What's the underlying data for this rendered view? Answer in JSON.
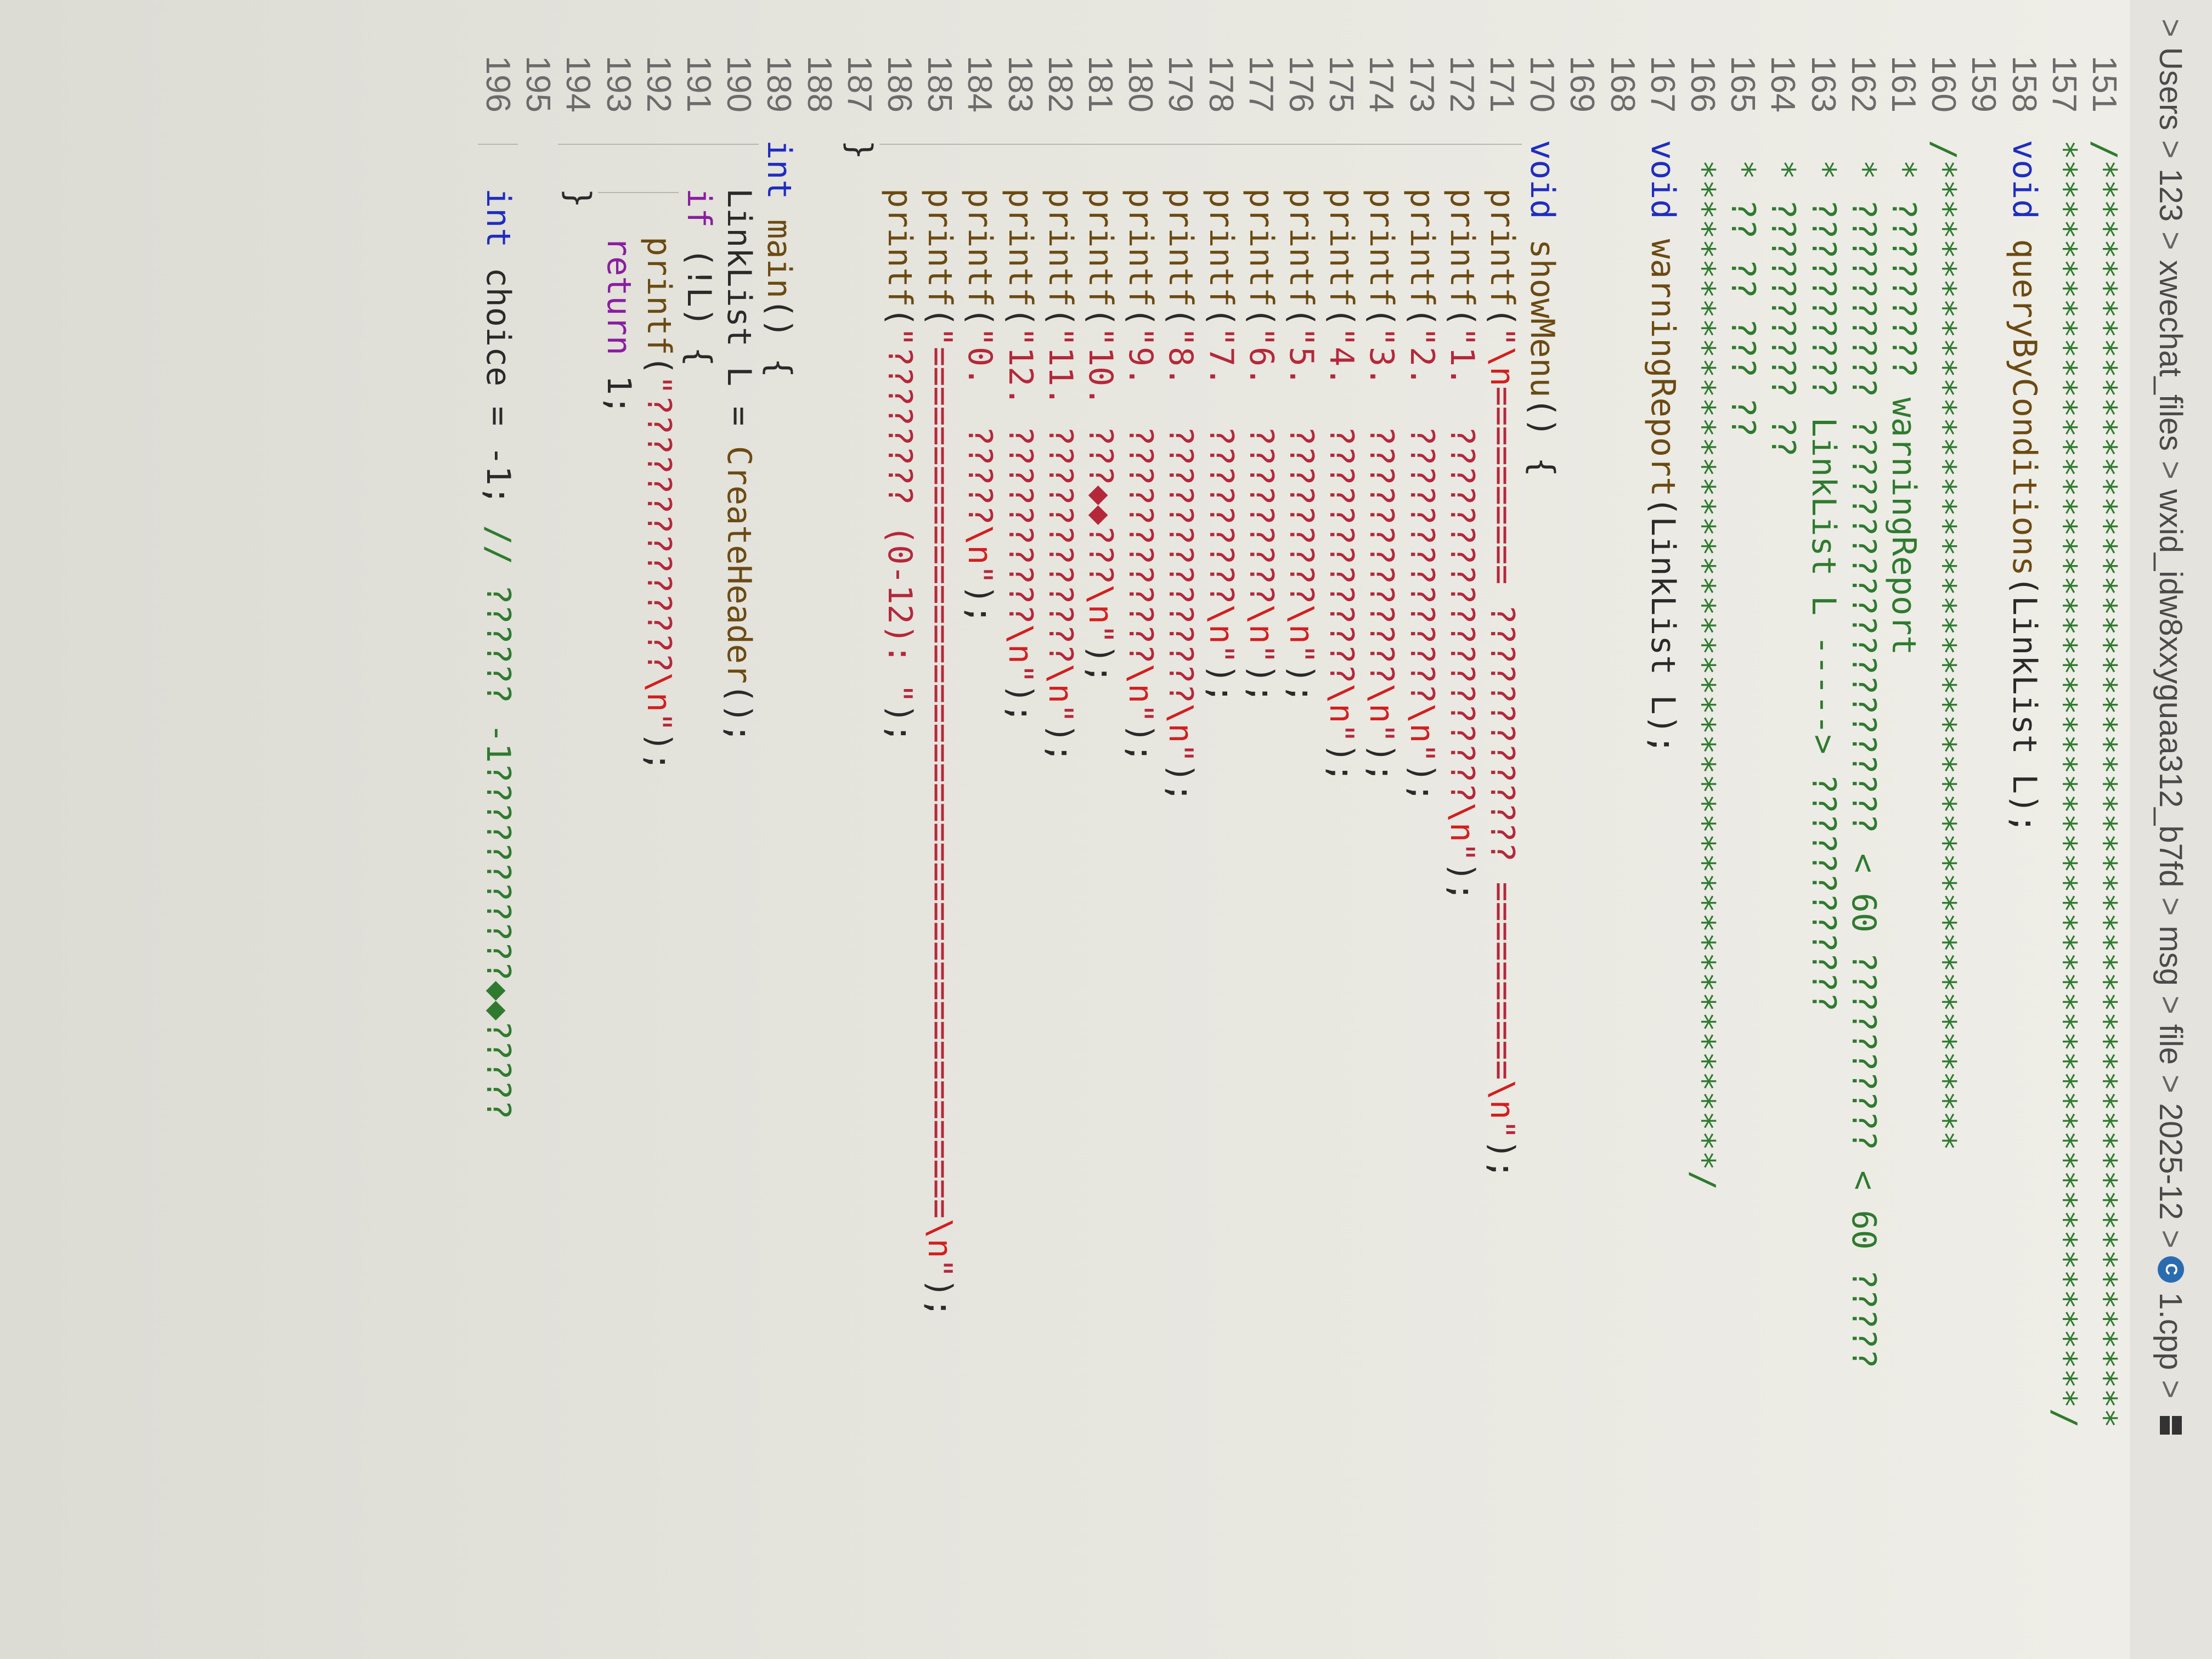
{
  "breadcrumb": {
    "items": [
      "Users",
      "123",
      "xwechat_files",
      "wxid_idw8xxyguaa312_b7fd",
      "msg",
      "file",
      "2025-12",
      "1.cpp"
    ],
    "separator": ">"
  },
  "editor": {
    "lines": [
      {
        "n": "151",
        "indent": 0,
        "tokens": [
          {
            "t": "cmt",
            "v": "/****************************************************************"
          }
        ]
      },
      {
        "n": "157",
        "indent": 0,
        "tokens": [
          {
            "t": "cmt",
            "v": "****************************************************************/"
          }
        ]
      },
      {
        "n": "158",
        "indent": 0,
        "tokens": [
          {
            "t": "kw",
            "v": "void "
          },
          {
            "t": "fn",
            "v": "queryByConditions"
          },
          {
            "t": "p",
            "v": "(LinkList L);"
          }
        ]
      },
      {
        "n": "159",
        "indent": 0,
        "tokens": []
      },
      {
        "n": "160",
        "indent": 0,
        "tokens": [
          {
            "t": "cmt",
            "v": "/**************************************************"
          }
        ]
      },
      {
        "n": "161",
        "indent": 0,
        "tokens": [
          {
            "t": "cmt",
            "v": " * ????????? warningReport"
          }
        ]
      },
      {
        "n": "162",
        "indent": 0,
        "tokens": [
          {
            "t": "cmt",
            "v": " * ?????????? ????????????????????? < 60 ?????????? < 60 ?????"
          }
        ]
      },
      {
        "n": "163",
        "indent": 0,
        "tokens": [
          {
            "t": "cmt",
            "v": " * ?????????? LinkList L -----> ????????????"
          }
        ]
      },
      {
        "n": "164",
        "indent": 0,
        "tokens": [
          {
            "t": "cmt",
            "v": " * ?????????? ??"
          }
        ]
      },
      {
        "n": "165",
        "indent": 0,
        "tokens": [
          {
            "t": "cmt",
            "v": " * ?? ?? ??? ??"
          }
        ]
      },
      {
        "n": "166",
        "indent": 0,
        "tokens": [
          {
            "t": "cmt",
            "v": " ***************************************************/"
          }
        ]
      },
      {
        "n": "167",
        "indent": 0,
        "tokens": [
          {
            "t": "kw",
            "v": "void "
          },
          {
            "t": "fn",
            "v": "warningReport"
          },
          {
            "t": "p",
            "v": "(LinkList L);"
          }
        ]
      },
      {
        "n": "168",
        "indent": 0,
        "tokens": []
      },
      {
        "n": "169",
        "indent": 0,
        "tokens": []
      },
      {
        "n": "170",
        "indent": 0,
        "tokens": [
          {
            "t": "kw",
            "v": "void "
          },
          {
            "t": "fn",
            "v": "showMenu"
          },
          {
            "t": "p",
            "v": "() {"
          }
        ]
      },
      {
        "n": "171",
        "indent": 1,
        "tokens": [
          {
            "t": "fn",
            "v": "printf"
          },
          {
            "t": "p",
            "v": "("
          },
          {
            "t": "str",
            "v": "\""
          },
          {
            "t": "esc",
            "v": "\\n"
          },
          {
            "t": "str",
            "v": "========== ????????????? =========="
          },
          {
            "t": "esc",
            "v": "\\n"
          },
          {
            "t": "str",
            "v": "\""
          },
          {
            "t": "p",
            "v": ");"
          }
        ]
      },
      {
        "n": "172",
        "indent": 1,
        "tokens": [
          {
            "t": "fn",
            "v": "printf"
          },
          {
            "t": "p",
            "v": "("
          },
          {
            "t": "str",
            "v": "\"1.  ???????????????????"
          },
          {
            "t": "esc",
            "v": "\\n"
          },
          {
            "t": "str",
            "v": "\""
          },
          {
            "t": "p",
            "v": ");"
          }
        ]
      },
      {
        "n": "173",
        "indent": 1,
        "tokens": [
          {
            "t": "fn",
            "v": "printf"
          },
          {
            "t": "p",
            "v": "("
          },
          {
            "t": "str",
            "v": "\"2.  ??????????????"
          },
          {
            "t": "esc",
            "v": "\\n"
          },
          {
            "t": "str",
            "v": "\""
          },
          {
            "t": "p",
            "v": ");"
          }
        ]
      },
      {
        "n": "174",
        "indent": 1,
        "tokens": [
          {
            "t": "fn",
            "v": "printf"
          },
          {
            "t": "p",
            "v": "("
          },
          {
            "t": "str",
            "v": "\"3.  ?????????????"
          },
          {
            "t": "esc",
            "v": "\\n"
          },
          {
            "t": "str",
            "v": "\""
          },
          {
            "t": "p",
            "v": ");"
          }
        ]
      },
      {
        "n": "175",
        "indent": 1,
        "tokens": [
          {
            "t": "fn",
            "v": "printf"
          },
          {
            "t": "p",
            "v": "("
          },
          {
            "t": "str",
            "v": "\"4.  ?????????????"
          },
          {
            "t": "esc",
            "v": "\\n"
          },
          {
            "t": "str",
            "v": "\""
          },
          {
            "t": "p",
            "v": ");"
          }
        ]
      },
      {
        "n": "176",
        "indent": 1,
        "tokens": [
          {
            "t": "fn",
            "v": "printf"
          },
          {
            "t": "p",
            "v": "("
          },
          {
            "t": "str",
            "v": "\"5.  ?????????"
          },
          {
            "t": "esc",
            "v": "\\n"
          },
          {
            "t": "str",
            "v": "\""
          },
          {
            "t": "p",
            "v": ");"
          }
        ]
      },
      {
        "n": "177",
        "indent": 1,
        "tokens": [
          {
            "t": "fn",
            "v": "printf"
          },
          {
            "t": "p",
            "v": "("
          },
          {
            "t": "str",
            "v": "\"6.  ?????????"
          },
          {
            "t": "esc",
            "v": "\\n"
          },
          {
            "t": "str",
            "v": "\""
          },
          {
            "t": "p",
            "v": ");"
          }
        ]
      },
      {
        "n": "178",
        "indent": 1,
        "tokens": [
          {
            "t": "fn",
            "v": "printf"
          },
          {
            "t": "p",
            "v": "("
          },
          {
            "t": "str",
            "v": "\"7.  ?????????"
          },
          {
            "t": "esc",
            "v": "\\n"
          },
          {
            "t": "str",
            "v": "\""
          },
          {
            "t": "p",
            "v": ");"
          }
        ]
      },
      {
        "n": "179",
        "indent": 1,
        "tokens": [
          {
            "t": "fn",
            "v": "printf"
          },
          {
            "t": "p",
            "v": "("
          },
          {
            "t": "str",
            "v": "\"8.  ??????????????"
          },
          {
            "t": "esc",
            "v": "\\n"
          },
          {
            "t": "str",
            "v": "\""
          },
          {
            "t": "p",
            "v": ");"
          }
        ]
      },
      {
        "n": "180",
        "indent": 1,
        "tokens": [
          {
            "t": "fn",
            "v": "printf"
          },
          {
            "t": "p",
            "v": "("
          },
          {
            "t": "str",
            "v": "\"9.  ????????????"
          },
          {
            "t": "esc",
            "v": "\\n"
          },
          {
            "t": "str",
            "v": "\""
          },
          {
            "t": "p",
            "v": ");"
          }
        ]
      },
      {
        "n": "181",
        "indent": 1,
        "tokens": [
          {
            "t": "fn",
            "v": "printf"
          },
          {
            "t": "p",
            "v": "("
          },
          {
            "t": "str",
            "v": "\"10. ???◆◆???"
          },
          {
            "t": "esc",
            "v": "\\n"
          },
          {
            "t": "str",
            "v": "\""
          },
          {
            "t": "p",
            "v": ");"
          }
        ]
      },
      {
        "n": "182",
        "indent": 1,
        "tokens": [
          {
            "t": "fn",
            "v": "printf"
          },
          {
            "t": "p",
            "v": "("
          },
          {
            "t": "str",
            "v": "\"11. ????????????"
          },
          {
            "t": "esc",
            "v": "\\n"
          },
          {
            "t": "str",
            "v": "\""
          },
          {
            "t": "p",
            "v": ");"
          }
        ]
      },
      {
        "n": "183",
        "indent": 1,
        "tokens": [
          {
            "t": "fn",
            "v": "printf"
          },
          {
            "t": "p",
            "v": "("
          },
          {
            "t": "str",
            "v": "\"12. ??????????"
          },
          {
            "t": "esc",
            "v": "\\n"
          },
          {
            "t": "str",
            "v": "\""
          },
          {
            "t": "p",
            "v": ");"
          }
        ]
      },
      {
        "n": "184",
        "indent": 1,
        "tokens": [
          {
            "t": "fn",
            "v": "printf"
          },
          {
            "t": "p",
            "v": "("
          },
          {
            "t": "str",
            "v": "\"0.  ?????"
          },
          {
            "t": "esc",
            "v": "\\n"
          },
          {
            "t": "str",
            "v": "\""
          },
          {
            "t": "p",
            "v": ");"
          }
        ]
      },
      {
        "n": "185",
        "indent": 1,
        "tokens": [
          {
            "t": "fn",
            "v": "printf"
          },
          {
            "t": "p",
            "v": "("
          },
          {
            "t": "str",
            "v": "\"============================================"
          },
          {
            "t": "esc",
            "v": "\\n"
          },
          {
            "t": "str",
            "v": "\""
          },
          {
            "t": "p",
            "v": ");"
          }
        ]
      },
      {
        "n": "186",
        "indent": 1,
        "tokens": [
          {
            "t": "fn",
            "v": "printf"
          },
          {
            "t": "p",
            "v": "("
          },
          {
            "t": "str",
            "v": "\"???????? (0-12): \""
          },
          {
            "t": "p",
            "v": ");"
          }
        ]
      },
      {
        "n": "187",
        "indent": 0,
        "tokens": [
          {
            "t": "p",
            "v": "}"
          }
        ]
      },
      {
        "n": "188",
        "indent": 0,
        "tokens": []
      },
      {
        "n": "189",
        "indent": 0,
        "tokens": [
          {
            "t": "kw",
            "v": "int "
          },
          {
            "t": "fn",
            "v": "main"
          },
          {
            "t": "p",
            "v": "() {"
          }
        ]
      },
      {
        "n": "190",
        "indent": 1,
        "tokens": [
          {
            "t": "p",
            "v": "LinkList L = "
          },
          {
            "t": "fn",
            "v": "CreateHeader"
          },
          {
            "t": "p",
            "v": "();"
          }
        ]
      },
      {
        "n": "191",
        "indent": 1,
        "tokens": [
          {
            "t": "flow",
            "v": "if "
          },
          {
            "t": "p",
            "v": "(!L) {"
          }
        ]
      },
      {
        "n": "192",
        "indent": 2,
        "tokens": [
          {
            "t": "fn",
            "v": "printf"
          },
          {
            "t": "p",
            "v": "("
          },
          {
            "t": "str",
            "v": "\"??????????????"
          },
          {
            "t": "esc",
            "v": "\\n"
          },
          {
            "t": "str",
            "v": "\""
          },
          {
            "t": "p",
            "v": ");"
          }
        ]
      },
      {
        "n": "193",
        "indent": 2,
        "tokens": [
          {
            "t": "flow",
            "v": "return "
          },
          {
            "t": "p",
            "v": "1;"
          }
        ]
      },
      {
        "n": "194",
        "indent": 1,
        "tokens": [
          {
            "t": "p",
            "v": "}"
          }
        ]
      },
      {
        "n": "195",
        "indent": 0,
        "tokens": []
      },
      {
        "n": "196",
        "indent": 1,
        "tokens": [
          {
            "t": "kw",
            "v": "int "
          },
          {
            "t": "p",
            "v": "choice = -1; "
          },
          {
            "t": "cmt",
            "v": "// ?????? -1???????????◆◆?????"
          }
        ]
      }
    ]
  }
}
